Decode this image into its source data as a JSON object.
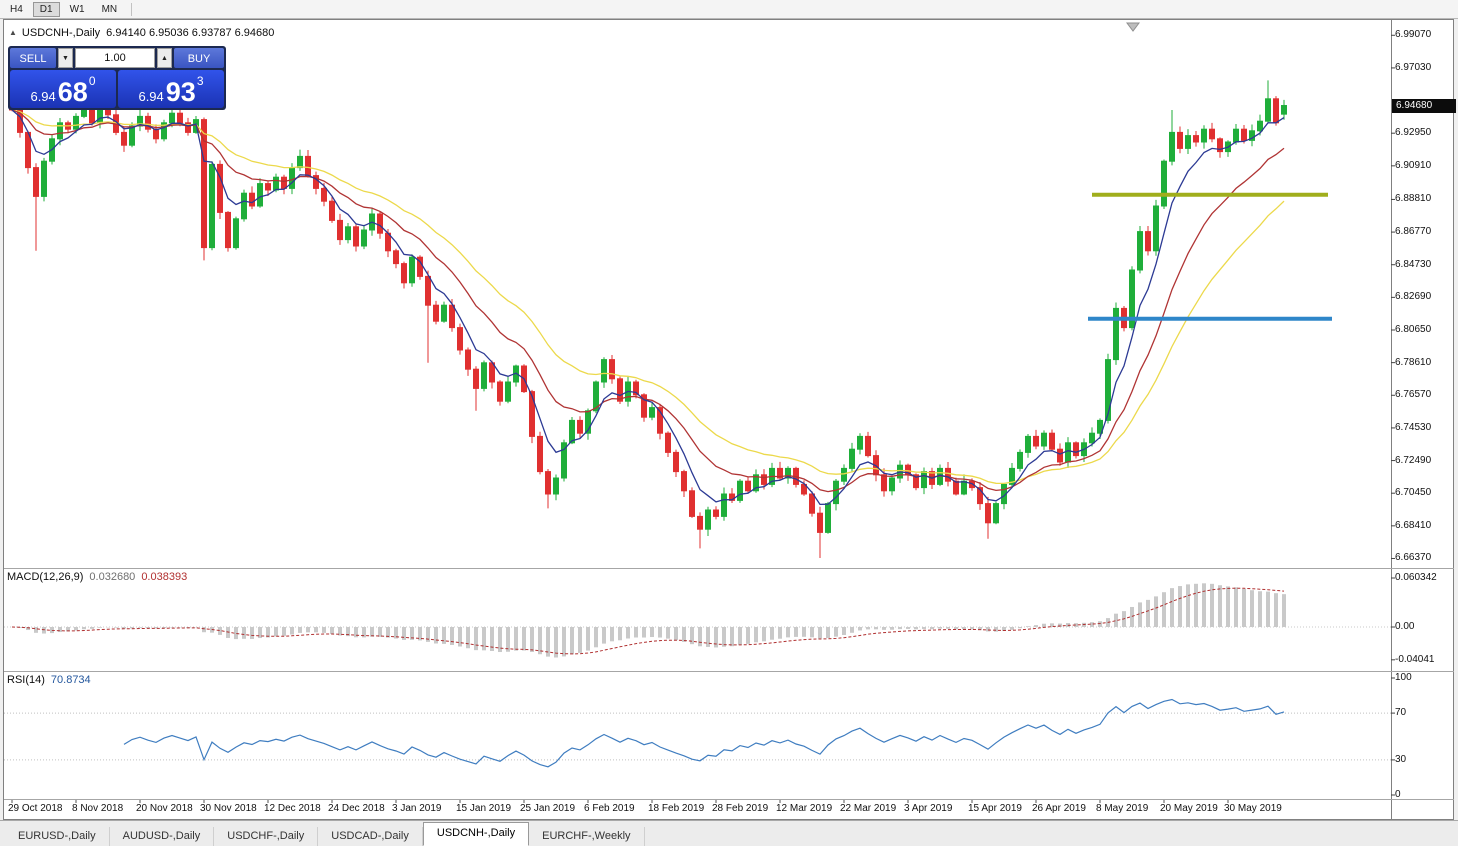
{
  "toolbar": {
    "timeframes": [
      {
        "label": "H4",
        "active": false
      },
      {
        "label": "D1",
        "active": true
      },
      {
        "label": "W1",
        "active": false
      },
      {
        "label": "MN",
        "active": false
      }
    ]
  },
  "chart": {
    "title_symbol": "USDCNH-,Daily",
    "title_ohlc": "6.94140 6.95036 6.93787 6.94680",
    "current_price": "6.94680",
    "price_axis_labels": [
      "6.99070",
      "6.97030",
      "6.92950",
      "6.90910",
      "6.88810",
      "6.86770",
      "6.84730",
      "6.82690",
      "6.80650",
      "6.78610",
      "6.76570",
      "6.74530",
      "6.72490",
      "6.70450",
      "6.68410",
      "6.66370"
    ],
    "date_axis_labels": [
      "29 Oct 2018",
      "8 Nov 2018",
      "20 Nov 2018",
      "30 Nov 2018",
      "12 Dec 2018",
      "24 Dec 2018",
      "3 Jan 2019",
      "15 Jan 2019",
      "25 Jan 2019",
      "6 Feb 2019",
      "18 Feb 2019",
      "28 Feb 2019",
      "12 Mar 2019",
      "22 Mar 2019",
      "3 Apr 2019",
      "15 Apr 2019",
      "26 Apr 2019",
      "8 May 2019",
      "20 May 2019",
      "30 May 2019"
    ]
  },
  "trade": {
    "sell_label": "SELL",
    "buy_label": "BUY",
    "volume": "1.00",
    "sell_price": {
      "base": "6.94",
      "big": "68",
      "sup": "0"
    },
    "buy_price": {
      "base": "6.94",
      "big": "93",
      "sup": "3"
    }
  },
  "indicators": {
    "macd": {
      "label": "MACD(12,26,9)",
      "value1": "0.032680",
      "value2": "0.038393",
      "axis": [
        "0.060342",
        "0.00",
        "-0.04041"
      ]
    },
    "rsi": {
      "label": "RSI(14)",
      "value": "70.8734",
      "axis": [
        "100",
        "70",
        "30",
        "0"
      ],
      "levels": [
        70,
        30
      ]
    }
  },
  "tabs": [
    {
      "label": "EURUSD-,Daily",
      "active": false
    },
    {
      "label": "AUDUSD-,Daily",
      "active": false
    },
    {
      "label": "USDCHF-,Daily",
      "active": false
    },
    {
      "label": "USDCAD-,Daily",
      "active": false
    },
    {
      "label": "USDCNH-,Daily",
      "active": true
    },
    {
      "label": "EURCHF-,Weekly",
      "active": false
    }
  ],
  "chart_data": {
    "type": "candlestick",
    "symbol": "USDCNH",
    "period": "Daily",
    "price_range": {
      "top": 6.999,
      "bottom": 6.659
    },
    "closes": [
      6.944,
      6.93,
      6.908,
      6.89,
      6.912,
      6.926,
      6.936,
      6.932,
      6.94,
      6.944,
      6.936,
      6.948,
      6.941,
      6.93,
      6.922,
      6.934,
      6.94,
      6.932,
      6.926,
      6.936,
      6.942,
      6.936,
      6.93,
      6.938,
      6.858,
      6.91,
      6.88,
      6.858,
      6.876,
      6.892,
      6.884,
      6.898,
      6.894,
      6.902,
      6.895,
      6.908,
      6.915,
      6.903,
      6.895,
      6.887,
      6.875,
      6.863,
      6.871,
      6.859,
      6.869,
      6.879,
      6.867,
      6.856,
      6.848,
      6.836,
      6.852,
      6.84,
      6.822,
      6.812,
      6.822,
      6.808,
      6.794,
      6.782,
      6.77,
      6.786,
      6.774,
      6.762,
      6.774,
      6.784,
      6.768,
      6.74,
      6.718,
      6.704,
      6.714,
      6.736,
      6.75,
      6.742,
      6.756,
      6.774,
      6.788,
      6.776,
      6.762,
      6.774,
      6.766,
      6.752,
      6.758,
      6.742,
      6.73,
      6.718,
      6.706,
      6.69,
      6.682,
      6.694,
      6.69,
      6.704,
      6.7,
      6.712,
      6.706,
      6.716,
      6.71,
      6.72,
      6.714,
      6.72,
      6.71,
      6.704,
      6.692,
      6.68,
      6.698,
      6.712,
      6.72,
      6.732,
      6.74,
      6.728,
      6.716,
      6.706,
      6.714,
      6.722,
      6.716,
      6.708,
      6.718,
      6.71,
      6.72,
      6.712,
      6.704,
      6.712,
      6.708,
      6.698,
      6.686,
      6.698,
      6.71,
      6.72,
      6.73,
      6.74,
      6.734,
      6.742,
      6.732,
      6.724,
      6.736,
      6.728,
      6.736,
      6.742,
      6.75,
      6.788,
      6.82,
      6.808,
      6.844,
      6.868,
      6.856,
      6.884,
      6.912,
      6.93,
      6.92,
      6.928,
      6.924,
      6.932,
      6.926,
      6.918,
      6.924,
      6.932,
      6.925,
      6.931,
      6.937,
      6.951,
      6.936,
      6.9468
    ],
    "last_bar": {
      "open": 6.9414,
      "high": 6.95036,
      "low": 6.93787,
      "close": 6.9468
    },
    "wick_overrides": [
      {
        "bar": 3,
        "low": 6.856
      },
      {
        "bar": 11,
        "high": 6.952
      },
      {
        "bar": 24,
        "low": 6.85
      },
      {
        "bar": 52,
        "low": 6.786
      },
      {
        "bar": 58,
        "low": 6.756
      },
      {
        "bar": 67,
        "low": 6.695
      },
      {
        "bar": 86,
        "low": 6.67
      },
      {
        "bar": 101,
        "low": 6.664
      },
      {
        "bar": 122,
        "low": 6.676
      },
      {
        "bar": 145,
        "high": 6.944
      },
      {
        "bar": 157,
        "high": 6.9625
      }
    ],
    "colors": {
      "up": "#1fae3a",
      "down": "#e03030",
      "ma_fast": "#2c3a94",
      "ma_mid": "#b03434",
      "ma_slow": "#ecd94b",
      "macd_hist": "#c9c9c9",
      "macd_signal": "#b03030",
      "rsi_line": "#3f7dc0",
      "hline_green": "#a0ae1c",
      "hline_blue": "#2f86c9"
    },
    "hlines": [
      {
        "name": "resistance-hline",
        "color": "#a0ae1c",
        "price": 6.891,
        "from_bar": 135.0,
        "to_bar": 164.5
      },
      {
        "name": "support-hline",
        "color": "#2f86c9",
        "price": 6.8135,
        "from_bar": 134.5,
        "to_bar": 165.0
      }
    ]
  }
}
